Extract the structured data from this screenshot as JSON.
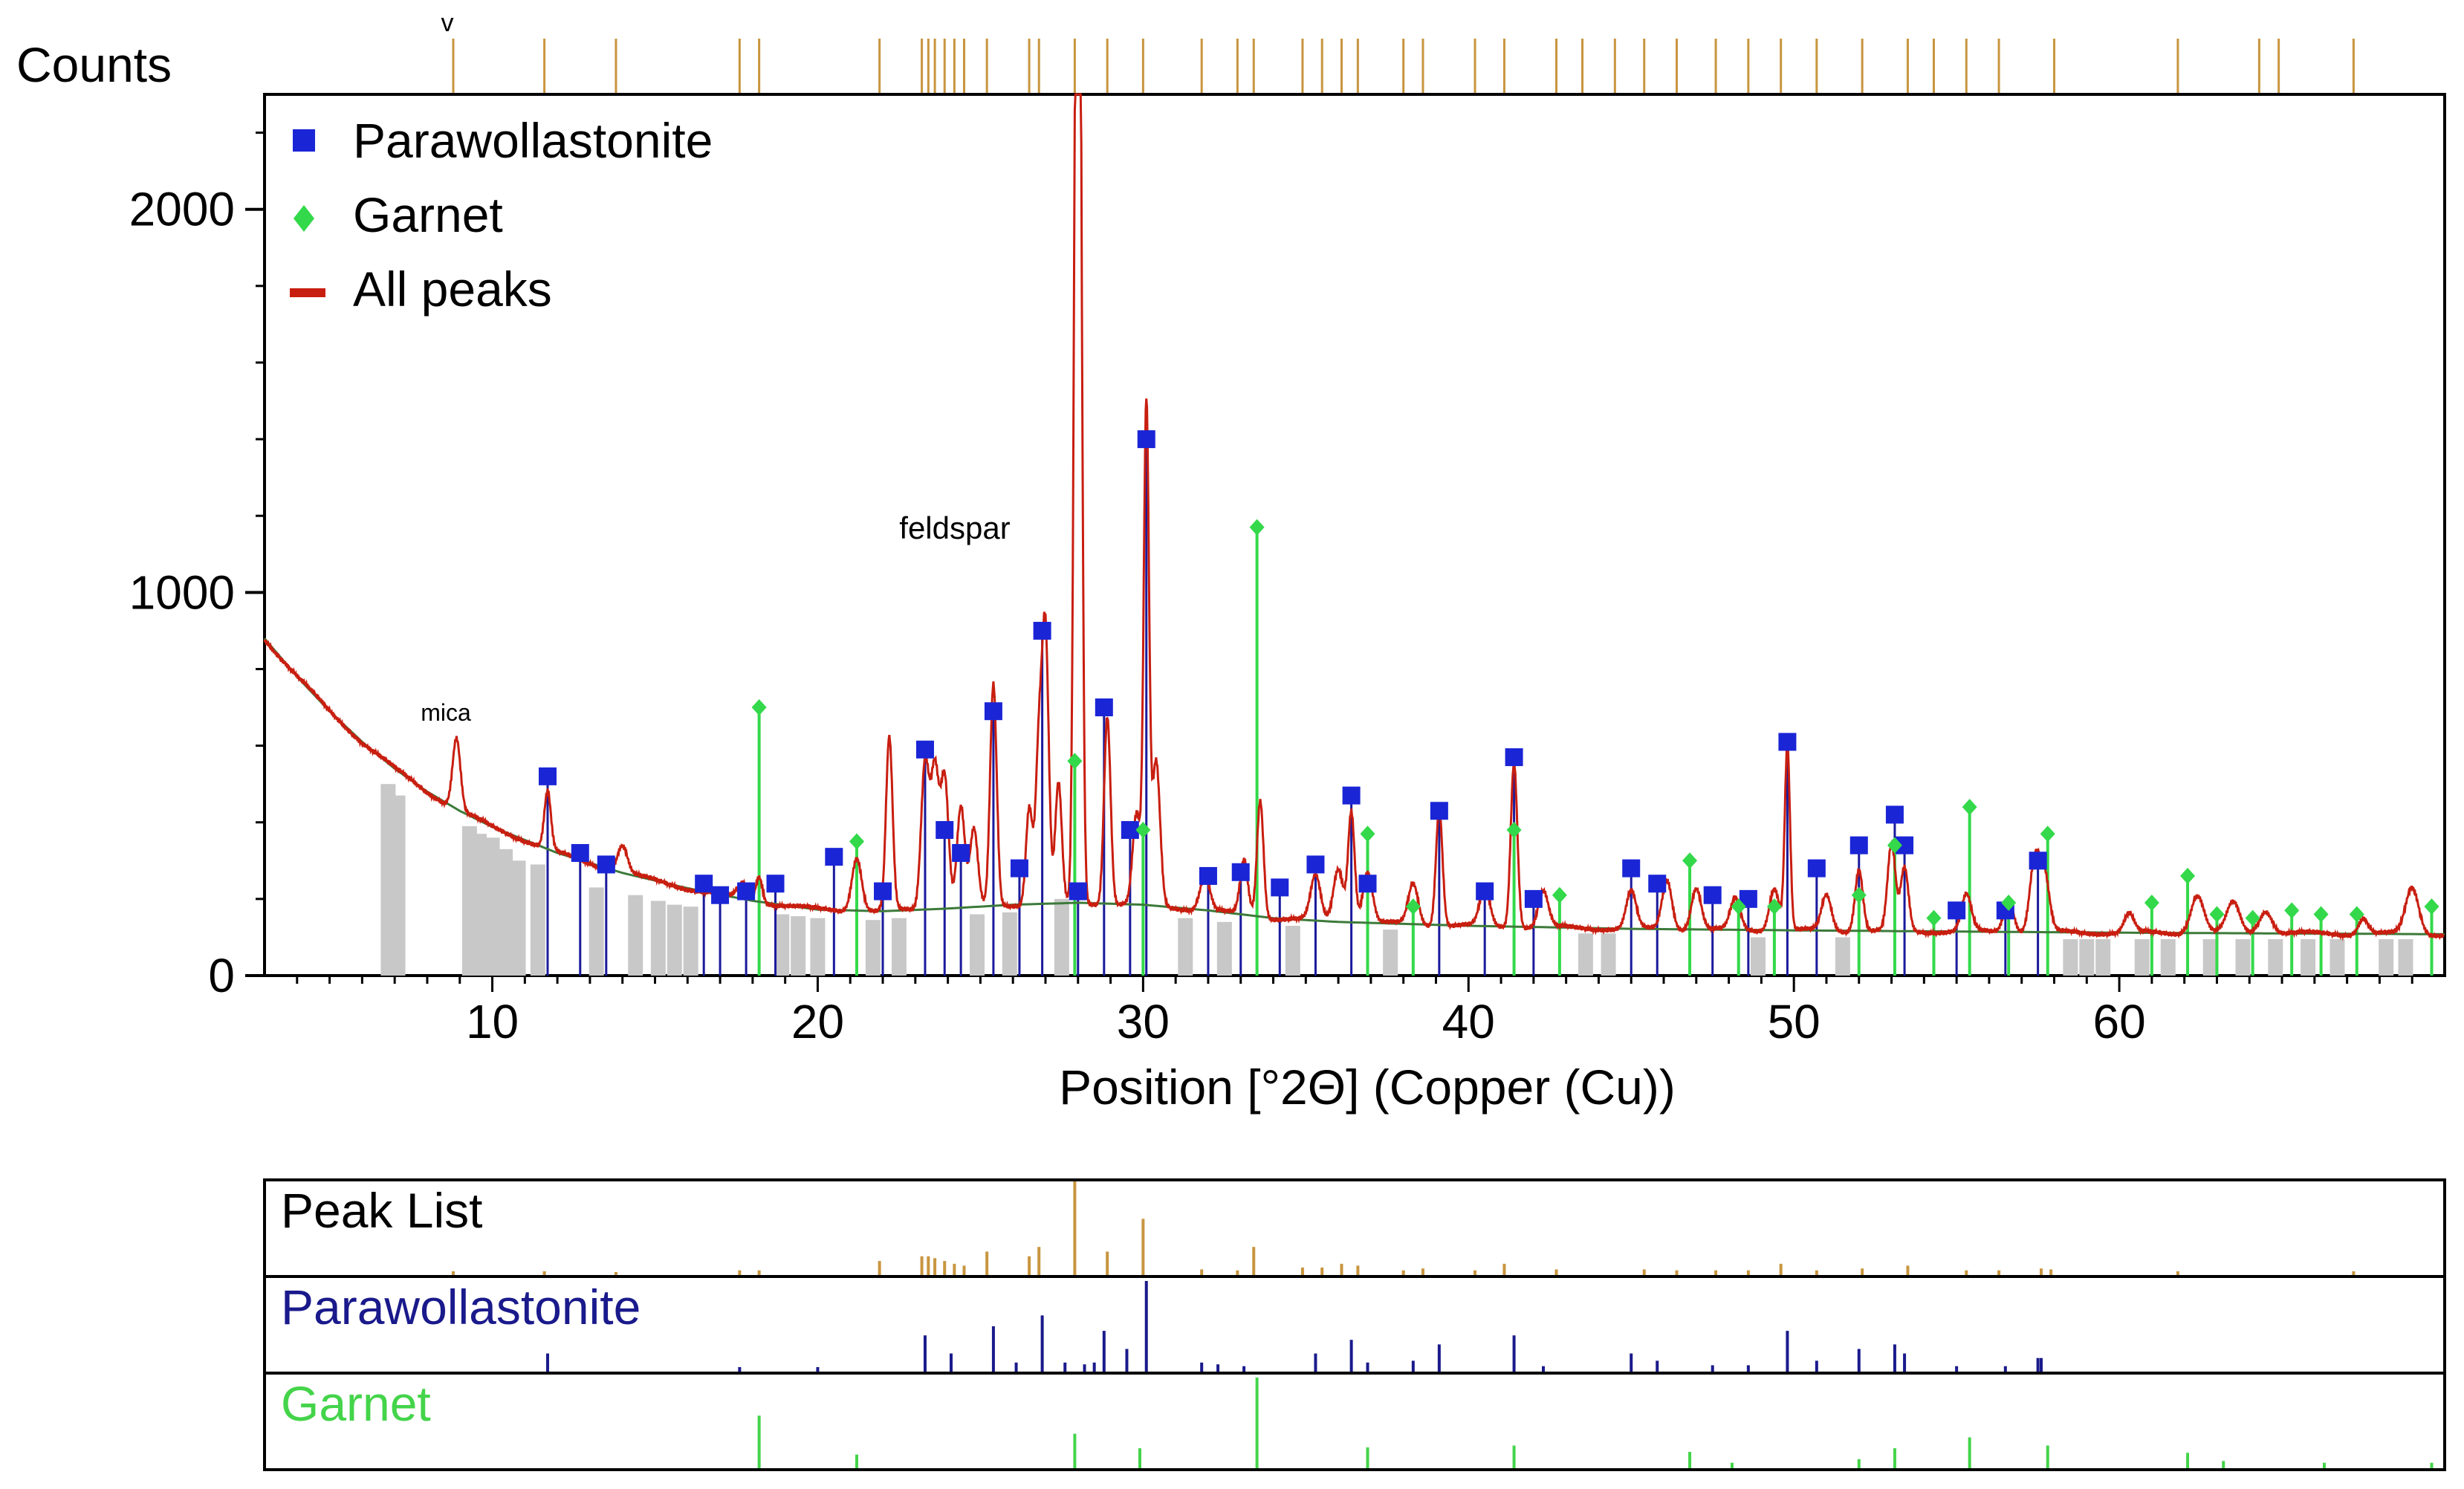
{
  "chart_data": {
    "type": "line",
    "ylabel": "Counts",
    "xlabel": "Position [°2Θ] (Copper (Cu))",
    "xlim": [
      3,
      70
    ],
    "ylim": [
      0,
      2300
    ],
    "x_ticks": [
      10,
      20,
      30,
      40,
      50,
      60
    ],
    "y_ticks": [
      0,
      1000,
      2000
    ],
    "top_marker": "v",
    "legend": [
      {
        "name": "Parawollastonite",
        "color": "#1a25d6",
        "symbol": "square"
      },
      {
        "name": "Garnet",
        "color": "#33d94a",
        "symbol": "diamond"
      },
      {
        "name": "All peaks",
        "color": "#c81e10",
        "symbol": "line"
      }
    ],
    "annotations": [
      {
        "text": "mica",
        "x": 9.3,
        "y": 640
      },
      {
        "text": "feldspar",
        "x": 22.8,
        "y": 1150
      }
    ],
    "background": [
      [
        3,
        880
      ],
      [
        4,
        780
      ],
      [
        5,
        690
      ],
      [
        6,
        610
      ],
      [
        7,
        540
      ],
      [
        8,
        480
      ],
      [
        9,
        430
      ],
      [
        10,
        388
      ],
      [
        12,
        320
      ],
      [
        14,
        268
      ],
      [
        16,
        228
      ],
      [
        18,
        195
      ],
      [
        20,
        172
      ],
      [
        22,
        168
      ],
      [
        24,
        175
      ],
      [
        26,
        185
      ],
      [
        28,
        190
      ],
      [
        30,
        185
      ],
      [
        32,
        170
      ],
      [
        34,
        150
      ],
      [
        36,
        140
      ],
      [
        40,
        130
      ],
      [
        45,
        122
      ],
      [
        50,
        118
      ],
      [
        55,
        115
      ],
      [
        60,
        112
      ],
      [
        65,
        110
      ],
      [
        70,
        108
      ]
    ],
    "series": [
      {
        "name": "All peaks",
        "color": "#c81e10",
        "peaks": [
          {
            "x": 8.9,
            "y": 620,
            "w": 0.12
          },
          {
            "x": 11.7,
            "y": 480,
            "w": 0.1
          },
          {
            "x": 14.0,
            "y": 340,
            "w": 0.15
          },
          {
            "x": 17.7,
            "y": 240,
            "w": 0.15
          },
          {
            "x": 18.2,
            "y": 260,
            "w": 0.1
          },
          {
            "x": 21.2,
            "y": 310,
            "w": 0.15
          },
          {
            "x": 22.2,
            "y": 620,
            "w": 0.1
          },
          {
            "x": 23.3,
            "y": 560,
            "w": 0.12
          },
          {
            "x": 23.6,
            "y": 540,
            "w": 0.12
          },
          {
            "x": 23.9,
            "y": 520,
            "w": 0.12
          },
          {
            "x": 24.4,
            "y": 440,
            "w": 0.12
          },
          {
            "x": 24.8,
            "y": 380,
            "w": 0.12
          },
          {
            "x": 25.4,
            "y": 760,
            "w": 0.1
          },
          {
            "x": 26.5,
            "y": 440,
            "w": 0.1
          },
          {
            "x": 26.8,
            "y": 600,
            "w": 0.1
          },
          {
            "x": 27.0,
            "y": 880,
            "w": 0.1
          },
          {
            "x": 27.4,
            "y": 500,
            "w": 0.1
          },
          {
            "x": 27.95,
            "y": 2300,
            "w": 0.08
          },
          {
            "x": 28.05,
            "y": 2150,
            "w": 0.08
          },
          {
            "x": 28.9,
            "y": 680,
            "w": 0.1
          },
          {
            "x": 29.8,
            "y": 420,
            "w": 0.12
          },
          {
            "x": 30.1,
            "y": 1480,
            "w": 0.08
          },
          {
            "x": 30.4,
            "y": 560,
            "w": 0.12
          },
          {
            "x": 31.9,
            "y": 260,
            "w": 0.15
          },
          {
            "x": 33.1,
            "y": 300,
            "w": 0.12
          },
          {
            "x": 33.6,
            "y": 460,
            "w": 0.1
          },
          {
            "x": 35.3,
            "y": 260,
            "w": 0.15
          },
          {
            "x": 36.0,
            "y": 280,
            "w": 0.15
          },
          {
            "x": 36.4,
            "y": 430,
            "w": 0.1
          },
          {
            "x": 36.9,
            "y": 270,
            "w": 0.15
          },
          {
            "x": 38.3,
            "y": 240,
            "w": 0.15
          },
          {
            "x": 39.1,
            "y": 440,
            "w": 0.1
          },
          {
            "x": 40.5,
            "y": 230,
            "w": 0.15
          },
          {
            "x": 41.4,
            "y": 560,
            "w": 0.1
          },
          {
            "x": 42.3,
            "y": 220,
            "w": 0.15
          },
          {
            "x": 45.0,
            "y": 220,
            "w": 0.15
          },
          {
            "x": 46.1,
            "y": 250,
            "w": 0.15
          },
          {
            "x": 47.0,
            "y": 230,
            "w": 0.15
          },
          {
            "x": 48.2,
            "y": 200,
            "w": 0.15
          },
          {
            "x": 49.4,
            "y": 230,
            "w": 0.15
          },
          {
            "x": 49.8,
            "y": 600,
            "w": 0.08
          },
          {
            "x": 51.0,
            "y": 210,
            "w": 0.15
          },
          {
            "x": 52.0,
            "y": 280,
            "w": 0.12
          },
          {
            "x": 53.0,
            "y": 340,
            "w": 0.12
          },
          {
            "x": 53.4,
            "y": 280,
            "w": 0.12
          },
          {
            "x": 55.3,
            "y": 210,
            "w": 0.15
          },
          {
            "x": 56.6,
            "y": 200,
            "w": 0.15
          },
          {
            "x": 57.4,
            "y": 300,
            "w": 0.15
          },
          {
            "x": 57.7,
            "y": 260,
            "w": 0.15
          },
          {
            "x": 60.3,
            "y": 160,
            "w": 0.15
          },
          {
            "x": 62.4,
            "y": 210,
            "w": 0.2
          },
          {
            "x": 63.5,
            "y": 190,
            "w": 0.2
          },
          {
            "x": 64.5,
            "y": 170,
            "w": 0.2
          },
          {
            "x": 67.5,
            "y": 150,
            "w": 0.15
          },
          {
            "x": 69.0,
            "y": 230,
            "w": 0.2
          }
        ]
      },
      {
        "name": "Parawollastonite",
        "color": "#1a25d6",
        "marker": "square",
        "values": [
          [
            11.7,
            520
          ],
          [
            12.7,
            320
          ],
          [
            13.5,
            290
          ],
          [
            16.5,
            240
          ],
          [
            17.0,
            210
          ],
          [
            17.8,
            220
          ],
          [
            18.7,
            240
          ],
          [
            20.5,
            310
          ],
          [
            22.0,
            220
          ],
          [
            23.3,
            590
          ],
          [
            23.9,
            380
          ],
          [
            24.4,
            320
          ],
          [
            25.4,
            690
          ],
          [
            26.2,
            280
          ],
          [
            26.9,
            900
          ],
          [
            28.0,
            220
          ],
          [
            28.8,
            700
          ],
          [
            29.6,
            380
          ],
          [
            30.1,
            1400
          ],
          [
            32.0,
            260
          ],
          [
            33.0,
            270
          ],
          [
            34.2,
            230
          ],
          [
            35.3,
            290
          ],
          [
            36.4,
            470
          ],
          [
            36.9,
            240
          ],
          [
            39.1,
            430
          ],
          [
            40.5,
            220
          ],
          [
            41.4,
            570
          ],
          [
            42.0,
            200
          ],
          [
            45.0,
            280
          ],
          [
            45.8,
            240
          ],
          [
            47.5,
            210
          ],
          [
            48.6,
            200
          ],
          [
            49.8,
            610
          ],
          [
            50.7,
            280
          ],
          [
            52.0,
            340
          ],
          [
            53.1,
            420
          ],
          [
            53.4,
            340
          ],
          [
            55.0,
            170
          ],
          [
            56.5,
            170
          ],
          [
            57.5,
            300
          ]
        ]
      },
      {
        "name": "Garnet",
        "color": "#33d94a",
        "marker": "diamond",
        "values": [
          [
            18.2,
            700
          ],
          [
            21.2,
            350
          ],
          [
            27.9,
            560
          ],
          [
            30.0,
            380
          ],
          [
            33.5,
            1170
          ],
          [
            36.9,
            370
          ],
          [
            38.3,
            180
          ],
          [
            41.4,
            380
          ],
          [
            42.8,
            210
          ],
          [
            46.8,
            300
          ],
          [
            48.3,
            180
          ],
          [
            49.4,
            180
          ],
          [
            52.0,
            210
          ],
          [
            53.1,
            340
          ],
          [
            54.3,
            150
          ],
          [
            55.4,
            440
          ],
          [
            56.6,
            190
          ],
          [
            57.8,
            370
          ],
          [
            61.0,
            190
          ],
          [
            62.1,
            260
          ],
          [
            63.0,
            160
          ],
          [
            64.1,
            150
          ],
          [
            65.3,
            170
          ],
          [
            66.2,
            160
          ],
          [
            67.3,
            160
          ],
          [
            69.6,
            180
          ]
        ]
      }
    ],
    "gray_sticks": [
      [
        6.8,
        500
      ],
      [
        7.1,
        470
      ],
      [
        9.3,
        390
      ],
      [
        9.6,
        370
      ],
      [
        10.0,
        360
      ],
      [
        10.4,
        330
      ],
      [
        10.8,
        300
      ],
      [
        11.4,
        290
      ],
      [
        13.2,
        230
      ],
      [
        14.4,
        210
      ],
      [
        15.1,
        195
      ],
      [
        15.6,
        185
      ],
      [
        16.1,
        180
      ],
      [
        18.9,
        160
      ],
      [
        19.4,
        155
      ],
      [
        20.0,
        150
      ],
      [
        21.7,
        145
      ],
      [
        22.5,
        150
      ],
      [
        24.9,
        160
      ],
      [
        25.9,
        165
      ],
      [
        27.5,
        200
      ],
      [
        31.3,
        150
      ],
      [
        32.5,
        140
      ],
      [
        34.6,
        130
      ],
      [
        37.6,
        120
      ],
      [
        43.6,
        110
      ],
      [
        44.3,
        110
      ],
      [
        48.9,
        100
      ],
      [
        51.5,
        100
      ],
      [
        58.5,
        95
      ],
      [
        59.0,
        95
      ],
      [
        59.5,
        95
      ],
      [
        60.7,
        95
      ],
      [
        61.5,
        95
      ],
      [
        62.8,
        95
      ],
      [
        63.8,
        95
      ],
      [
        64.8,
        95
      ],
      [
        65.8,
        95
      ],
      [
        66.7,
        95
      ],
      [
        68.2,
        95
      ],
      [
        68.8,
        95
      ]
    ],
    "peak_positions": [
      8.8,
      11.6,
      13.8,
      17.6,
      18.2,
      21.9,
      23.2,
      23.4,
      23.6,
      23.9,
      24.2,
      24.5,
      25.2,
      26.5,
      26.8,
      27.9,
      28.9,
      30.0,
      31.8,
      32.9,
      33.4,
      34.9,
      35.5,
      36.1,
      36.6,
      38.0,
      38.6,
      40.2,
      41.1,
      42.7,
      43.5,
      44.5,
      45.4,
      46.4,
      47.6,
      48.6,
      49.6,
      50.7,
      52.1,
      53.5,
      54.3,
      55.3,
      56.3,
      58.0,
      61.8,
      64.3,
      64.9,
      67.2
    ],
    "panels": [
      {
        "label": "Peak List",
        "color": "#c8953f",
        "sticks": [
          [
            8.8,
            0.04
          ],
          [
            11.6,
            0.04
          ],
          [
            13.8,
            0.03
          ],
          [
            17.6,
            0.05
          ],
          [
            18.2,
            0.05
          ],
          [
            21.9,
            0.15
          ],
          [
            23.2,
            0.2
          ],
          [
            23.4,
            0.2
          ],
          [
            23.6,
            0.18
          ],
          [
            23.9,
            0.15
          ],
          [
            24.2,
            0.12
          ],
          [
            24.5,
            0.1
          ],
          [
            25.2,
            0.25
          ],
          [
            26.5,
            0.2
          ],
          [
            26.8,
            0.3
          ],
          [
            27.9,
            1.0
          ],
          [
            28.9,
            0.25
          ],
          [
            30.0,
            0.6
          ],
          [
            31.8,
            0.06
          ],
          [
            32.9,
            0.05
          ],
          [
            33.4,
            0.3
          ],
          [
            34.9,
            0.08
          ],
          [
            35.5,
            0.08
          ],
          [
            36.1,
            0.12
          ],
          [
            36.6,
            0.1
          ],
          [
            38.0,
            0.05
          ],
          [
            38.6,
            0.07
          ],
          [
            40.2,
            0.05
          ],
          [
            41.1,
            0.12
          ],
          [
            42.7,
            0.06
          ],
          [
            45.4,
            0.06
          ],
          [
            46.4,
            0.05
          ],
          [
            47.6,
            0.05
          ],
          [
            48.6,
            0.05
          ],
          [
            49.6,
            0.12
          ],
          [
            50.7,
            0.05
          ],
          [
            52.1,
            0.07
          ],
          [
            53.5,
            0.1
          ],
          [
            55.3,
            0.05
          ],
          [
            56.3,
            0.05
          ],
          [
            57.6,
            0.07
          ],
          [
            57.9,
            0.06
          ],
          [
            61.8,
            0.04
          ],
          [
            67.2,
            0.04
          ]
        ]
      },
      {
        "label": "Parawollastonite",
        "color": "#1a1a8c",
        "sticks": [
          [
            11.7,
            0.2
          ],
          [
            17.6,
            0.05
          ],
          [
            20.0,
            0.05
          ],
          [
            23.3,
            0.4
          ],
          [
            24.1,
            0.2
          ],
          [
            25.4,
            0.5
          ],
          [
            26.1,
            0.1
          ],
          [
            26.9,
            0.62
          ],
          [
            27.6,
            0.1
          ],
          [
            28.2,
            0.08
          ],
          [
            28.5,
            0.1
          ],
          [
            28.8,
            0.45
          ],
          [
            29.5,
            0.25
          ],
          [
            30.1,
            1.0
          ],
          [
            31.8,
            0.1
          ],
          [
            32.3,
            0.08
          ],
          [
            33.1,
            0.06
          ],
          [
            35.3,
            0.2
          ],
          [
            36.4,
            0.35
          ],
          [
            36.9,
            0.1
          ],
          [
            38.3,
            0.12
          ],
          [
            39.1,
            0.3
          ],
          [
            41.4,
            0.4
          ],
          [
            42.3,
            0.06
          ],
          [
            45.0,
            0.2
          ],
          [
            45.8,
            0.12
          ],
          [
            47.5,
            0.07
          ],
          [
            48.6,
            0.07
          ],
          [
            49.8,
            0.45
          ],
          [
            50.7,
            0.12
          ],
          [
            52.0,
            0.25
          ],
          [
            53.1,
            0.3
          ],
          [
            53.4,
            0.2
          ],
          [
            55.0,
            0.06
          ],
          [
            56.5,
            0.06
          ],
          [
            57.5,
            0.15
          ],
          [
            57.6,
            0.15
          ]
        ]
      },
      {
        "label": "Garnet",
        "color": "#44d44a",
        "sticks": [
          [
            18.2,
            0.58
          ],
          [
            21.2,
            0.15
          ],
          [
            27.9,
            0.38
          ],
          [
            29.9,
            0.22
          ],
          [
            33.5,
            1.0
          ],
          [
            36.9,
            0.23
          ],
          [
            41.4,
            0.25
          ],
          [
            46.8,
            0.18
          ],
          [
            48.1,
            0.06
          ],
          [
            52.0,
            0.1
          ],
          [
            53.1,
            0.22
          ],
          [
            55.4,
            0.34
          ],
          [
            57.8,
            0.25
          ],
          [
            62.1,
            0.17
          ],
          [
            63.2,
            0.08
          ],
          [
            66.3,
            0.06
          ],
          [
            69.6,
            0.06
          ]
        ]
      }
    ]
  }
}
